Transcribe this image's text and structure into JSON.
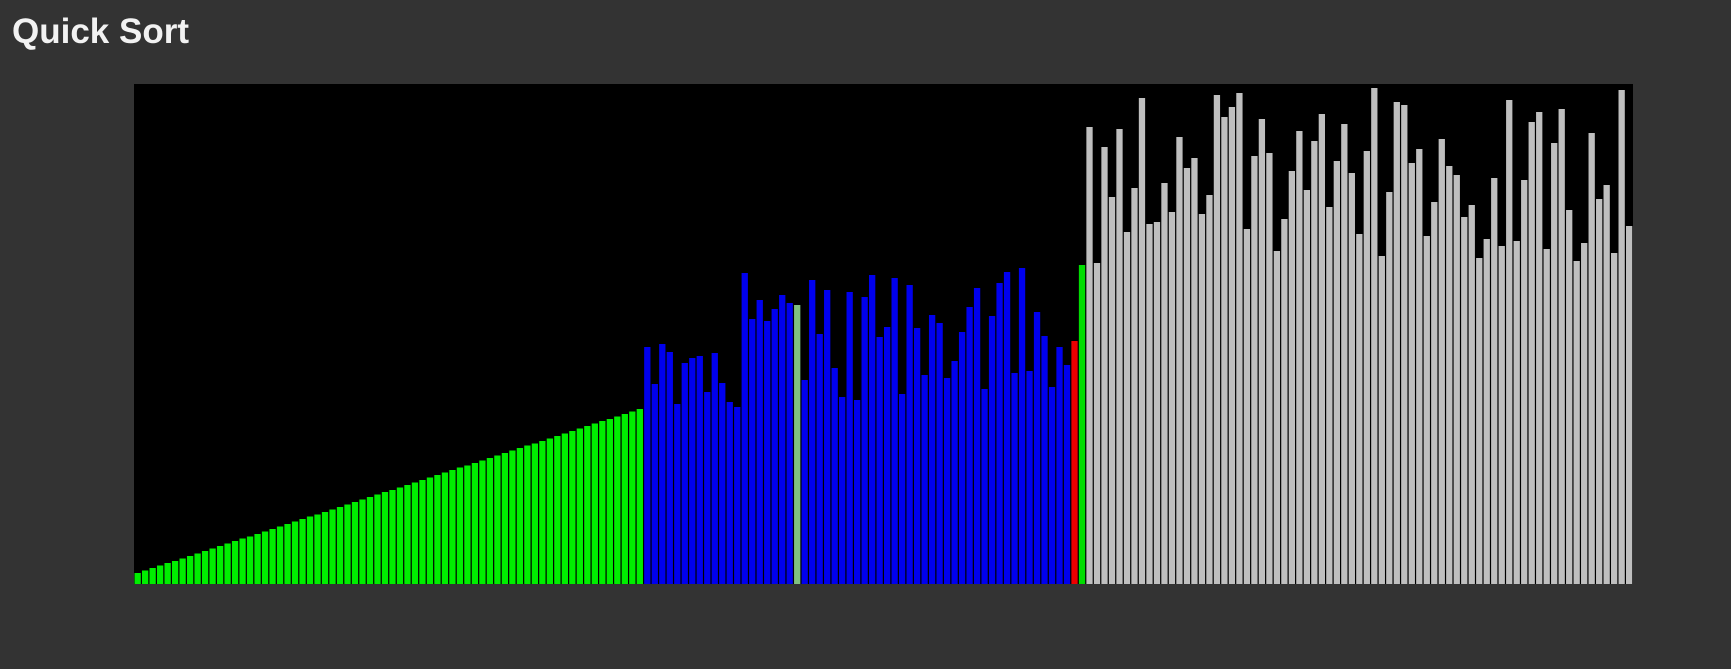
{
  "header": {
    "title": "Quick Sort"
  },
  "colors": {
    "background": "#333333",
    "canvas": "#000000",
    "sorted": "#00ee00",
    "partition": "#0000ee",
    "compare": "#80c080",
    "pivot": "#ee0000",
    "placed": "#00dd00",
    "unsorted": "#bfbfbf"
  },
  "chart_data": {
    "type": "bar",
    "title": "",
    "xlabel": "",
    "ylabel": "",
    "grid": false,
    "ylim": [
      0,
      100
    ],
    "bar_count": 200,
    "values": [
      2.2,
      2.7,
      3.2,
      3.7,
      4.2,
      4.6,
      5.1,
      5.6,
      6.1,
      6.6,
      7.1,
      7.6,
      8.1,
      8.6,
      9.1,
      9.5,
      10.0,
      10.5,
      11.0,
      11.5,
      12.0,
      12.5,
      13.0,
      13.5,
      13.9,
      14.4,
      14.9,
      15.4,
      15.9,
      16.4,
      16.9,
      17.4,
      17.9,
      18.4,
      18.8,
      19.3,
      19.8,
      20.3,
      20.8,
      21.3,
      21.8,
      22.3,
      22.8,
      23.3,
      23.7,
      24.2,
      24.7,
      25.2,
      25.7,
      26.2,
      26.7,
      27.2,
      27.7,
      28.1,
      28.6,
      29.1,
      29.6,
      30.1,
      30.6,
      31.1,
      31.6,
      32.1,
      32.6,
      33.0,
      33.5,
      34.0,
      34.5,
      35.0,
      47.4,
      40.0,
      48.0,
      46.4,
      36.0,
      44.2,
      45.2,
      45.6,
      38.4,
      46.2,
      40.2,
      36.4,
      35.4,
      62.2,
      53.0,
      56.8,
      52.6,
      55.0,
      57.8,
      56.2,
      55.8,
      40.8,
      60.8,
      50.0,
      58.8,
      43.2,
      37.4,
      58.4,
      36.8,
      57.4,
      61.8,
      49.4,
      51.4,
      61.2,
      38.0,
      59.8,
      51.2,
      41.8,
      53.8,
      52.2,
      41.2,
      44.6,
      50.4,
      55.4,
      59.2,
      39.0,
      53.6,
      60.2,
      62.4,
      42.2,
      63.2,
      42.6,
      54.4,
      49.6,
      39.4,
      47.4,
      43.8,
      48.6,
      63.8,
      91.4,
      64.2,
      87.4,
      77.4,
      91.0,
      70.4,
      79.2,
      97.2,
      72.0,
      72.4,
      80.2,
      74.4,
      89.4,
      83.2,
      85.2,
      74.0,
      77.8,
      97.8,
      93.4,
      95.4,
      98.2,
      71.0,
      85.6,
      93.0,
      86.2,
      66.6,
      73.0,
      82.6,
      90.6,
      78.8,
      88.6,
      94.0,
      75.4,
      84.6,
      92.0,
      82.2,
      70.0,
      86.6,
      99.2,
      65.6,
      78.4,
      96.4,
      95.8,
      84.2,
      87.0,
      69.6,
      76.4,
      89.0,
      83.6,
      81.8,
      73.4,
      75.8,
      65.2,
      69.0,
      81.2,
      67.6,
      96.8,
      68.6,
      80.8,
      92.4,
      94.4,
      67.0,
      88.2,
      95.0,
      74.8,
      64.6,
      68.2,
      90.2,
      77.0,
      79.8,
      66.2,
      98.8,
      71.6
    ],
    "state_ranges": [
      {
        "state": "sorted",
        "from": 0,
        "to": 67
      },
      {
        "state": "partition",
        "from": 68,
        "to": 124
      },
      {
        "state": "compare",
        "from": 88,
        "to": 88
      },
      {
        "state": "pivot",
        "from": 125,
        "to": 125
      },
      {
        "state": "placed",
        "from": 126,
        "to": 126
      },
      {
        "state": "unsorted",
        "from": 127,
        "to": 199
      }
    ]
  }
}
